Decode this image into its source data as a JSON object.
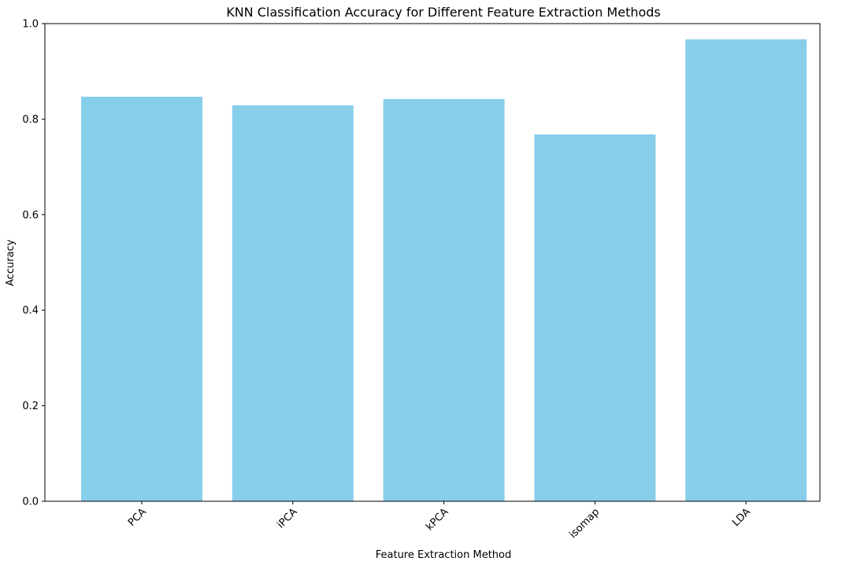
{
  "chart_data": {
    "type": "bar",
    "title": "KNN Classification Accuracy for Different Feature Extraction Methods",
    "xlabel": "Feature Extraction Method",
    "ylabel": "Accuracy",
    "categories": [
      "PCA",
      "iPCA",
      "kPCA",
      "isomap",
      "LDA"
    ],
    "values": [
      0.847,
      0.829,
      0.842,
      0.768,
      0.967
    ],
    "ylim": [
      0,
      1.0
    ],
    "yticks": [
      "0.0",
      "0.2",
      "0.4",
      "0.6",
      "0.8",
      "1.0"
    ],
    "bar_color": "#87ceeb",
    "grid": false,
    "legend": "none"
  }
}
